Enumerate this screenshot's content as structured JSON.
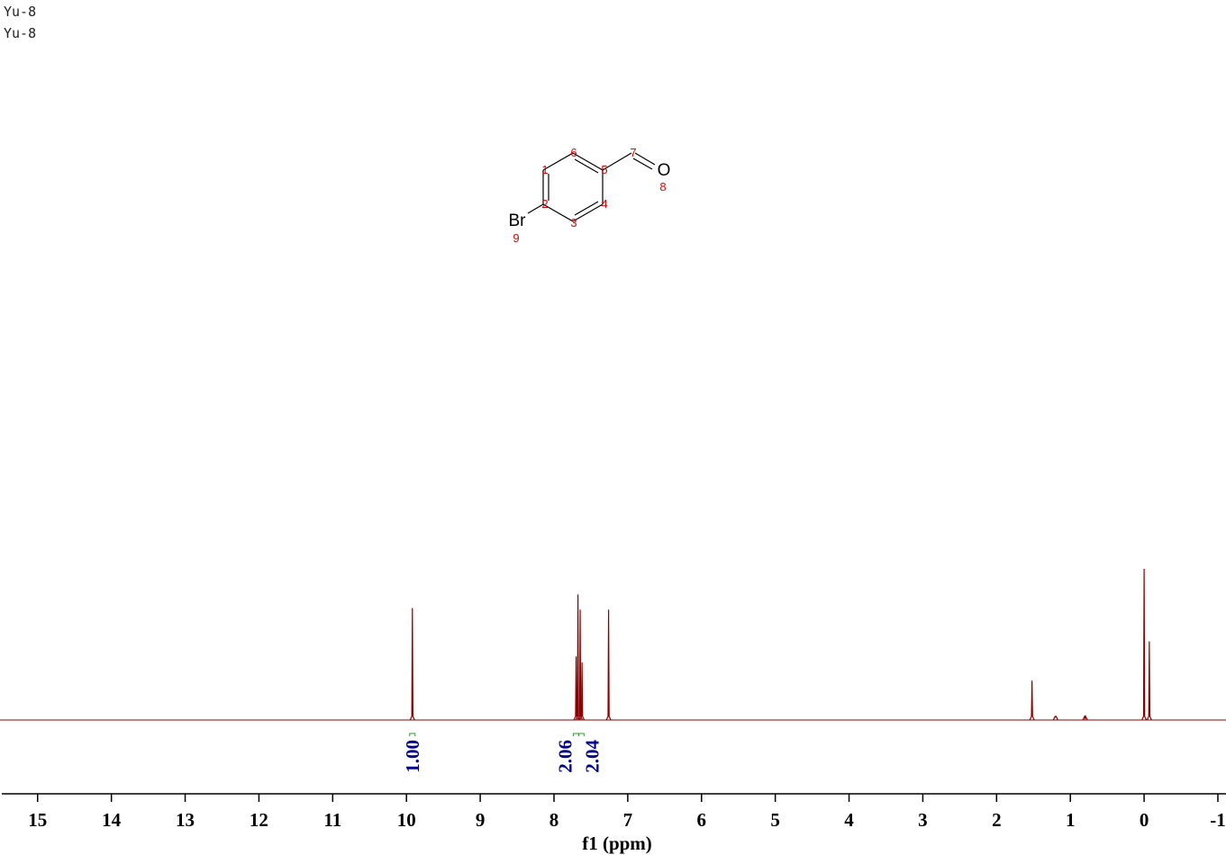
{
  "header": {
    "lines": [
      "Yu-8",
      "Yu-8"
    ]
  },
  "structure": {
    "atoms": [
      {
        "symbol": null,
        "number": "1"
      },
      {
        "symbol": null,
        "number": "2"
      },
      {
        "symbol": null,
        "number": "3"
      },
      {
        "symbol": null,
        "number": "4"
      },
      {
        "symbol": null,
        "number": "5"
      },
      {
        "symbol": null,
        "number": "6"
      },
      {
        "symbol": null,
        "number": "7"
      },
      {
        "symbol": "O",
        "number": "8"
      },
      {
        "symbol": "Br",
        "number": "9"
      }
    ]
  },
  "chart_data": {
    "type": "peaks",
    "x_label": "f1 (ppm)",
    "color": "#8b0000",
    "x": [
      9.92,
      7.7,
      7.675,
      7.645,
      7.62,
      7.26,
      1.52,
      1.2,
      0.8,
      0.0,
      -0.07
    ],
    "values": [
      0.74,
      0.42,
      0.83,
      0.73,
      0.38,
      0.73,
      0.26,
      0.02,
      0.01,
      1.0,
      0.52
    ],
    "xlim": [
      15.51,
      -1.11
    ],
    "xticks": [
      15,
      14,
      13,
      12,
      11,
      10,
      9,
      8,
      7,
      6,
      5,
      4,
      3,
      2,
      1,
      0,
      -1
    ],
    "integrals": {
      "x": [
        9.92,
        7.7,
        7.63
      ],
      "values": [
        1,
        2.06,
        2.04
      ],
      "value_labels": [
        "1.00",
        "2.06",
        "2.04"
      ],
      "color": "#00008b"
    }
  }
}
